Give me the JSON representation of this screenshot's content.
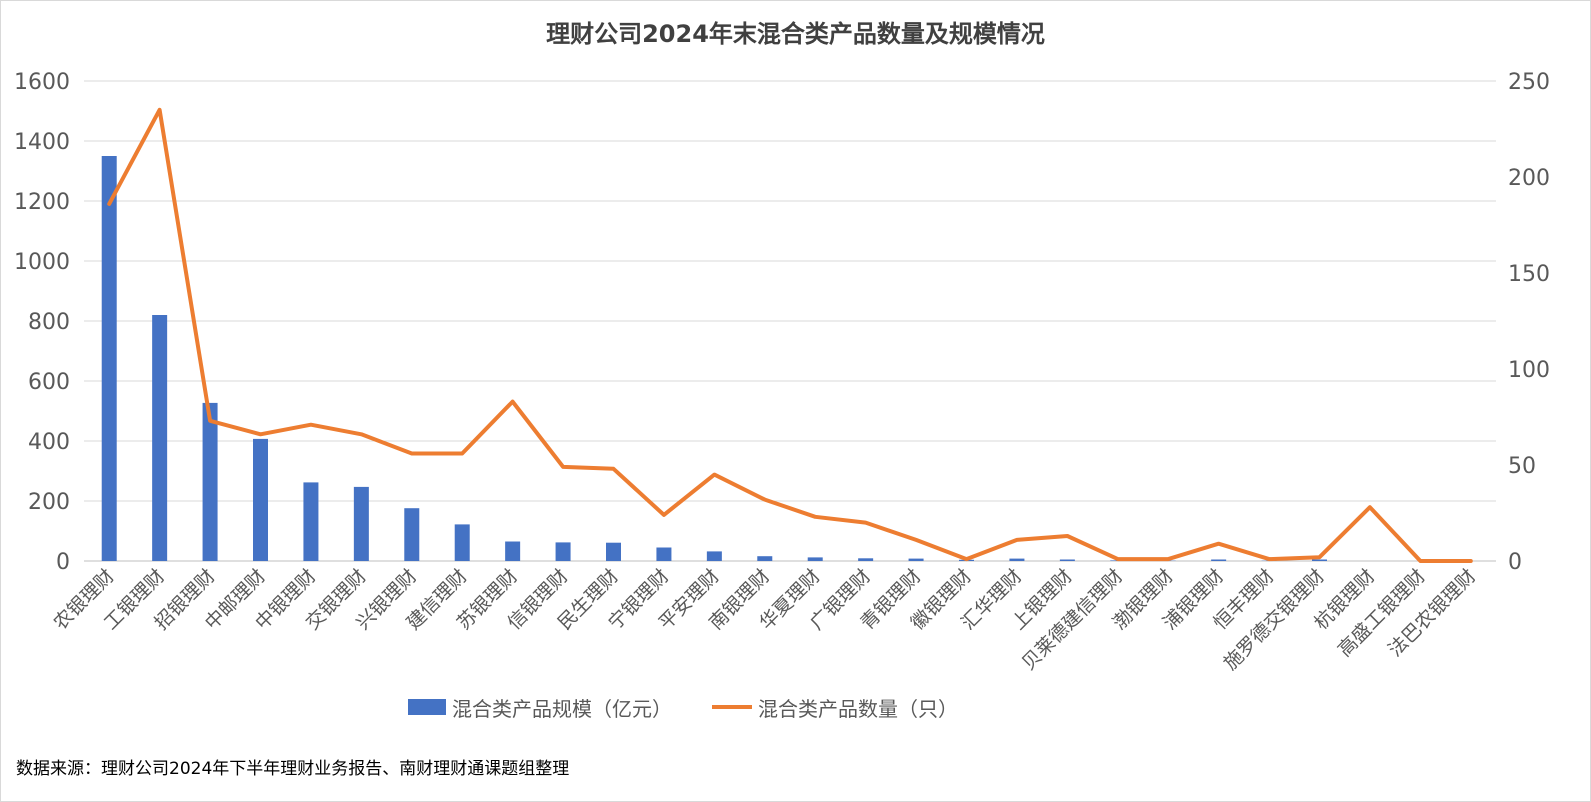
{
  "chart_data": {
    "type": "bar",
    "title": "理财公司2024年末混合类产品数量及规模情况",
    "categories": [
      "农银理财",
      "工银理财",
      "招银理财",
      "中邮理财",
      "中银理财",
      "交银理财",
      "兴银理财",
      "建信理财",
      "苏银理财",
      "信银理财",
      "民生理财",
      "宁银理财",
      "平安理财",
      "南银理财",
      "华夏理财",
      "广银理财",
      "青银理财",
      "徽银理财",
      "汇华理财",
      "上银理财",
      "贝莱德建信理财",
      "渤银理财",
      "浦银理财",
      "恒丰理财",
      "施罗德交银理财",
      "杭银理财",
      "高盛工银理财",
      "法巴农银理财"
    ],
    "y_left": {
      "ylim": [
        0,
        1600
      ],
      "ticks": [
        0,
        200,
        400,
        600,
        800,
        1000,
        1200,
        1400,
        1600
      ]
    },
    "y_right": {
      "ylim": [
        0,
        250
      ],
      "ticks": [
        0,
        50,
        100,
        150,
        200,
        250
      ]
    },
    "series": [
      {
        "name": "混合类产品规模（亿元）",
        "type": "bar",
        "axis": "left",
        "color": "#4472C4",
        "values": [
          1350,
          820,
          527,
          407,
          262,
          247,
          176,
          122,
          65,
          62,
          61,
          45,
          32,
          16,
          12,
          9,
          8,
          4,
          8,
          5,
          2,
          1,
          5,
          1,
          5,
          0,
          0,
          0
        ]
      },
      {
        "name": "混合类产品数量（只）",
        "type": "line",
        "axis": "right",
        "color": "#ED7D31",
        "values": [
          186,
          235,
          73,
          66,
          71,
          66,
          56,
          56,
          83,
          49,
          48,
          24,
          45,
          32,
          23,
          20,
          11,
          1,
          11,
          13,
          1,
          1,
          9,
          1,
          2,
          28,
          0,
          0
        ]
      }
    ],
    "grid": true,
    "legend": "bottom"
  },
  "source_note": "数据来源：理财公司2024年下半年理财业务报告、南财理财通课题组整理"
}
